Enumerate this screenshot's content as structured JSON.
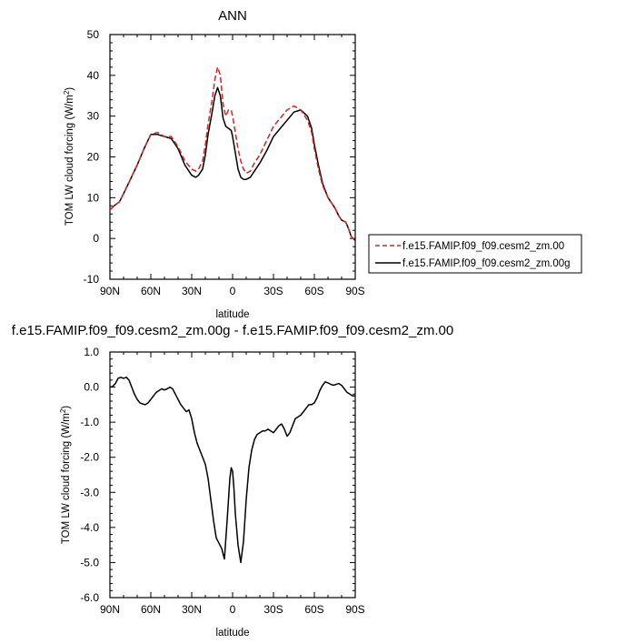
{
  "chart_data": [
    {
      "type": "line",
      "title": "ANN",
      "xlabel": "latitude",
      "ylabel": "TOM LW cloud forcing (W/m",
      "ylabel_sup": "2",
      "ylabel_close": ")",
      "x_ticks": [
        "90N",
        "60N",
        "30N",
        "0",
        "30S",
        "60S",
        "90S"
      ],
      "x_tick_values": [
        90,
        60,
        30,
        0,
        -30,
        -60,
        -90
      ],
      "y_ticks": [
        "50",
        "40",
        "30",
        "20",
        "10",
        "0",
        "-10"
      ],
      "ylim": [
        -10,
        50
      ],
      "xlim": [
        90,
        -90
      ],
      "grid": false,
      "legend_position": "right",
      "series": [
        {
          "name": "f.e15.FAMIP.f09_f09.cesm2_zm.00",
          "color": "#e02020",
          "dash": "dashed",
          "x": [
            90,
            87,
            83,
            80,
            75,
            70,
            65,
            60,
            55,
            50,
            45,
            40,
            35,
            30,
            27,
            25,
            22,
            20,
            18,
            15,
            13,
            11,
            9,
            7,
            5,
            3,
            1,
            0,
            -2,
            -4,
            -6,
            -8,
            -10,
            -13,
            -16,
            -20,
            -25,
            -30,
            -35,
            -40,
            -45,
            -50,
            -55,
            -58,
            -60,
            -63,
            -66,
            -70,
            -75,
            -78,
            -80,
            -83,
            -85,
            -87,
            -90
          ],
          "values": [
            7,
            8,
            9,
            11,
            14.5,
            18,
            22,
            25.5,
            26,
            25,
            25,
            22.5,
            19,
            17,
            16.5,
            17,
            19,
            23,
            28,
            34,
            39,
            42,
            40,
            33,
            30,
            31.5,
            31.5,
            30,
            26,
            22,
            19,
            17,
            16,
            16.5,
            18.5,
            20.5,
            24,
            27.5,
            29.5,
            31.5,
            32.5,
            31.5,
            29,
            26,
            22,
            17,
            13,
            10,
            7.5,
            5.5,
            4.5,
            4,
            2.5,
            0.5,
            -0.5
          ]
        },
        {
          "name": "f.e15.FAMIP.f09_f09.cesm2_zm.00g",
          "color": "#000000",
          "dash": "solid",
          "x": [
            90,
            87,
            83,
            80,
            75,
            70,
            65,
            60,
            55,
            50,
            45,
            40,
            35,
            30,
            27,
            25,
            22,
            20,
            18,
            15,
            13,
            11,
            9,
            7,
            5,
            3,
            1,
            0,
            -2,
            -4,
            -6,
            -8,
            -10,
            -13,
            -16,
            -20,
            -25,
            -30,
            -35,
            -40,
            -45,
            -50,
            -55,
            -58,
            -60,
            -63,
            -66,
            -70,
            -75,
            -78,
            -80,
            -83,
            -85,
            -87,
            -90
          ],
          "values": [
            7,
            8,
            9,
            11,
            14.5,
            18,
            22,
            25.5,
            25.5,
            25,
            24.5,
            22,
            18,
            15.5,
            15,
            15.5,
            17,
            20.5,
            25.5,
            31,
            35,
            37,
            35,
            29.5,
            27.5,
            27,
            26.5,
            25,
            21,
            17,
            15,
            14.5,
            14.5,
            15,
            16.5,
            18.5,
            21.5,
            25,
            27,
            29,
            31,
            31.5,
            30,
            27,
            23,
            18,
            13.5,
            10,
            7.5,
            5.5,
            4.5,
            4,
            2.5,
            0.5,
            -0.5
          ]
        }
      ]
    },
    {
      "type": "line",
      "title": "f.e15.FAMIP.f09_f09.cesm2_zm.00g - f.e15.FAMIP.f09_f09.cesm2_zm.00",
      "xlabel": "latitude",
      "ylabel": "TOM LW cloud forcing (W/m",
      "ylabel_sup": "2",
      "ylabel_close": ")",
      "x_ticks": [
        "90N",
        "60N",
        "30N",
        "0",
        "30S",
        "60S",
        "90S"
      ],
      "x_tick_values": [
        90,
        60,
        30,
        0,
        -30,
        -60,
        -90
      ],
      "y_ticks": [
        "1.0",
        "0.0",
        "-1.0",
        "-2.0",
        "-3.0",
        "-4.0",
        "-5.0",
        "-6.0"
      ],
      "ylim": [
        -6,
        1
      ],
      "xlim": [
        90,
        -90
      ],
      "grid": false,
      "series": [
        {
          "color": "#000000",
          "dash": "solid",
          "x": [
            90,
            88,
            86,
            84,
            82,
            80,
            78,
            76,
            74,
            72,
            70,
            68,
            66,
            64,
            62,
            60,
            58,
            56,
            54,
            52,
            50,
            48,
            46,
            44,
            42,
            40,
            38,
            36,
            34,
            32,
            30,
            28,
            26,
            24,
            22,
            20,
            18,
            16,
            14,
            12,
            10,
            8,
            6,
            4,
            2,
            1,
            0,
            -1,
            -2,
            -4,
            -6,
            -8,
            -10,
            -12,
            -14,
            -16,
            -18,
            -20,
            -22,
            -24,
            -26,
            -28,
            -30,
            -32,
            -34,
            -36,
            -38,
            -40,
            -42,
            -44,
            -46,
            -48,
            -50,
            -52,
            -54,
            -56,
            -58,
            -60,
            -62,
            -64,
            -66,
            -68,
            -70,
            -72,
            -74,
            -76,
            -78,
            -80,
            -82,
            -84,
            -86,
            -88,
            -90
          ],
          "values": [
            0.0,
            0.02,
            0.1,
            0.25,
            0.28,
            0.25,
            0.28,
            0.2,
            0.0,
            -0.2,
            -0.35,
            -0.45,
            -0.48,
            -0.5,
            -0.45,
            -0.35,
            -0.25,
            -0.15,
            -0.1,
            -0.05,
            -0.08,
            -0.05,
            0.0,
            -0.05,
            -0.2,
            -0.35,
            -0.5,
            -0.6,
            -0.7,
            -0.65,
            -0.9,
            -1.3,
            -1.6,
            -1.8,
            -2.0,
            -2.2,
            -2.6,
            -3.2,
            -3.8,
            -4.3,
            -4.45,
            -4.6,
            -4.9,
            -3.8,
            -2.6,
            -2.3,
            -2.4,
            -2.9,
            -3.6,
            -4.5,
            -5.0,
            -4.4,
            -3.2,
            -2.3,
            -1.8,
            -1.5,
            -1.35,
            -1.3,
            -1.25,
            -1.25,
            -1.2,
            -1.25,
            -1.3,
            -1.2,
            -1.1,
            -1.05,
            -1.2,
            -1.4,
            -1.3,
            -1.1,
            -0.9,
            -0.85,
            -0.8,
            -0.7,
            -0.6,
            -0.5,
            -0.5,
            -0.45,
            -0.3,
            -0.1,
            0.05,
            0.15,
            0.12,
            0.08,
            0.05,
            0.08,
            0.1,
            0.05,
            -0.05,
            -0.15,
            -0.2,
            -0.25,
            -0.25
          ]
        }
      ]
    }
  ]
}
